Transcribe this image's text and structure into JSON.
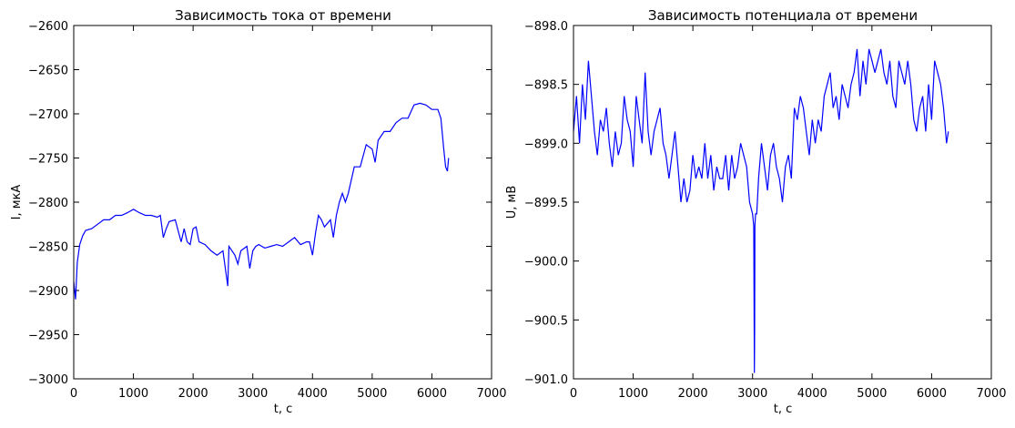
{
  "chart_data": [
    {
      "type": "line",
      "title": "Зависимость тока от времени",
      "xlabel": "t, с",
      "ylabel": "I, мкА",
      "xlim": [
        0,
        7000
      ],
      "ylim": [
        -3000,
        -2600
      ],
      "xticks": [
        "0",
        "1000",
        "2000",
        "3000",
        "4000",
        "5000",
        "6000",
        "7000"
      ],
      "yticks": [
        "−2600",
        "−2650",
        "−2700",
        "−2750",
        "−2800",
        "−2850",
        "−2900",
        "−2950",
        "−3000"
      ],
      "grid": false,
      "color": "#0000ff",
      "series": [
        {
          "x": [
            0,
            30,
            60,
            100,
            150,
            200,
            300,
            400,
            500,
            600,
            700,
            800,
            900,
            1000,
            1100,
            1200,
            1300,
            1400,
            1450,
            1500,
            1550,
            1600,
            1700,
            1800,
            1850,
            1900,
            1950,
            2000,
            2050,
            2100,
            2200,
            2300,
            2400,
            2500,
            2550,
            2580,
            2600,
            2700,
            2750,
            2800,
            2900,
            2950,
            3000,
            3050,
            3100,
            3200,
            3300,
            3400,
            3500,
            3600,
            3700,
            3800,
            3900,
            3950,
            4000,
            4050,
            4100,
            4150,
            4200,
            4300,
            4350,
            4400,
            4450,
            4500,
            4550,
            4600,
            4700,
            4800,
            4900,
            5000,
            5050,
            5100,
            5200,
            5300,
            5400,
            5500,
            5600,
            5700,
            5800,
            5900,
            6000,
            6100,
            6150,
            6200,
            6230,
            6260,
            6280
          ],
          "y": [
            -2890,
            -2910,
            -2868,
            -2848,
            -2838,
            -2832,
            -2830,
            -2825,
            -2820,
            -2820,
            -2815,
            -2815,
            -2812,
            -2808,
            -2812,
            -2815,
            -2815,
            -2817,
            -2815,
            -2840,
            -2830,
            -2822,
            -2820,
            -2845,
            -2830,
            -2845,
            -2848,
            -2830,
            -2828,
            -2845,
            -2848,
            -2855,
            -2860,
            -2855,
            -2880,
            -2895,
            -2850,
            -2860,
            -2870,
            -2855,
            -2850,
            -2875,
            -2855,
            -2850,
            -2848,
            -2852,
            -2850,
            -2848,
            -2850,
            -2845,
            -2840,
            -2848,
            -2845,
            -2845,
            -2860,
            -2835,
            -2815,
            -2820,
            -2828,
            -2820,
            -2840,
            -2815,
            -2800,
            -2790,
            -2800,
            -2790,
            -2760,
            -2760,
            -2735,
            -2740,
            -2755,
            -2730,
            -2720,
            -2720,
            -2710,
            -2705,
            -2705,
            -2690,
            -2688,
            -2690,
            -2695,
            -2695,
            -2705,
            -2740,
            -2760,
            -2765,
            -2750
          ]
        }
      ]
    },
    {
      "type": "line",
      "title": "Зависимость потенциала от времени",
      "xlabel": "t, с",
      "ylabel": "U, мВ",
      "xlim": [
        0,
        7000
      ],
      "ylim": [
        -901.0,
        -898.0
      ],
      "xticks": [
        "0",
        "1000",
        "2000",
        "3000",
        "4000",
        "5000",
        "6000",
        "7000"
      ],
      "yticks": [
        "−898.0",
        "−898.5",
        "−899.0",
        "−899.5",
        "−900.0",
        "−900.5",
        "−901.0"
      ],
      "grid": false,
      "color": "#0000ff",
      "series": [
        {
          "x": [
            0,
            50,
            100,
            150,
            200,
            250,
            300,
            350,
            400,
            450,
            500,
            550,
            600,
            650,
            700,
            750,
            800,
            850,
            900,
            950,
            1000,
            1050,
            1100,
            1150,
            1200,
            1250,
            1300,
            1350,
            1400,
            1450,
            1500,
            1550,
            1600,
            1650,
            1700,
            1750,
            1800,
            1850,
            1900,
            1950,
            2000,
            2050,
            2100,
            2150,
            2200,
            2250,
            2300,
            2350,
            2400,
            2450,
            2500,
            2550,
            2600,
            2650,
            2700,
            2750,
            2800,
            2850,
            2900,
            2950,
            3000,
            3020,
            3030,
            3035,
            3040,
            3050,
            3070,
            3100,
            3150,
            3200,
            3250,
            3300,
            3350,
            3400,
            3450,
            3500,
            3550,
            3600,
            3650,
            3700,
            3750,
            3800,
            3850,
            3900,
            3950,
            4000,
            4050,
            4100,
            4150,
            4200,
            4250,
            4300,
            4350,
            4400,
            4450,
            4500,
            4550,
            4600,
            4650,
            4700,
            4750,
            4800,
            4850,
            4900,
            4950,
            5000,
            5050,
            5100,
            5150,
            5200,
            5250,
            5300,
            5350,
            5400,
            5450,
            5500,
            5550,
            5600,
            5650,
            5700,
            5750,
            5800,
            5850,
            5900,
            5950,
            6000,
            6050,
            6100,
            6150,
            6200,
            6250,
            6280
          ],
          "y": [
            -898.9,
            -898.6,
            -899.0,
            -898.5,
            -898.8,
            -898.3,
            -898.6,
            -898.9,
            -899.1,
            -898.8,
            -898.9,
            -898.7,
            -899.0,
            -899.2,
            -898.9,
            -899.1,
            -899.0,
            -898.6,
            -898.8,
            -898.9,
            -899.2,
            -898.6,
            -898.8,
            -899.0,
            -898.4,
            -898.9,
            -899.1,
            -898.9,
            -898.8,
            -898.7,
            -899.0,
            -899.1,
            -899.3,
            -899.1,
            -898.9,
            -899.2,
            -899.5,
            -899.3,
            -899.5,
            -899.4,
            -899.1,
            -899.3,
            -899.2,
            -899.3,
            -899.0,
            -899.3,
            -899.1,
            -899.4,
            -899.2,
            -899.3,
            -899.3,
            -899.1,
            -899.4,
            -899.1,
            -899.3,
            -899.2,
            -899.0,
            -899.1,
            -899.2,
            -899.5,
            -899.6,
            -899.7,
            -900.95,
            -900.6,
            -899.7,
            -899.6,
            -899.6,
            -899.3,
            -899.0,
            -899.2,
            -899.4,
            -899.1,
            -899.0,
            -899.2,
            -899.3,
            -899.5,
            -899.2,
            -899.1,
            -899.3,
            -898.7,
            -898.8,
            -898.6,
            -898.7,
            -898.9,
            -899.1,
            -898.8,
            -899.0,
            -898.8,
            -898.9,
            -898.6,
            -898.5,
            -898.4,
            -898.7,
            -898.6,
            -898.8,
            -898.5,
            -898.6,
            -898.7,
            -898.5,
            -898.4,
            -898.2,
            -898.6,
            -898.3,
            -898.5,
            -898.2,
            -898.3,
            -898.4,
            -898.3,
            -898.2,
            -898.4,
            -898.5,
            -898.3,
            -898.6,
            -898.7,
            -898.3,
            -898.4,
            -898.5,
            -898.3,
            -898.5,
            -898.8,
            -898.9,
            -898.7,
            -898.6,
            -898.9,
            -898.5,
            -898.8,
            -898.3,
            -898.4,
            -898.5,
            -898.7,
            -899.0,
            -898.9
          ]
        }
      ]
    }
  ]
}
